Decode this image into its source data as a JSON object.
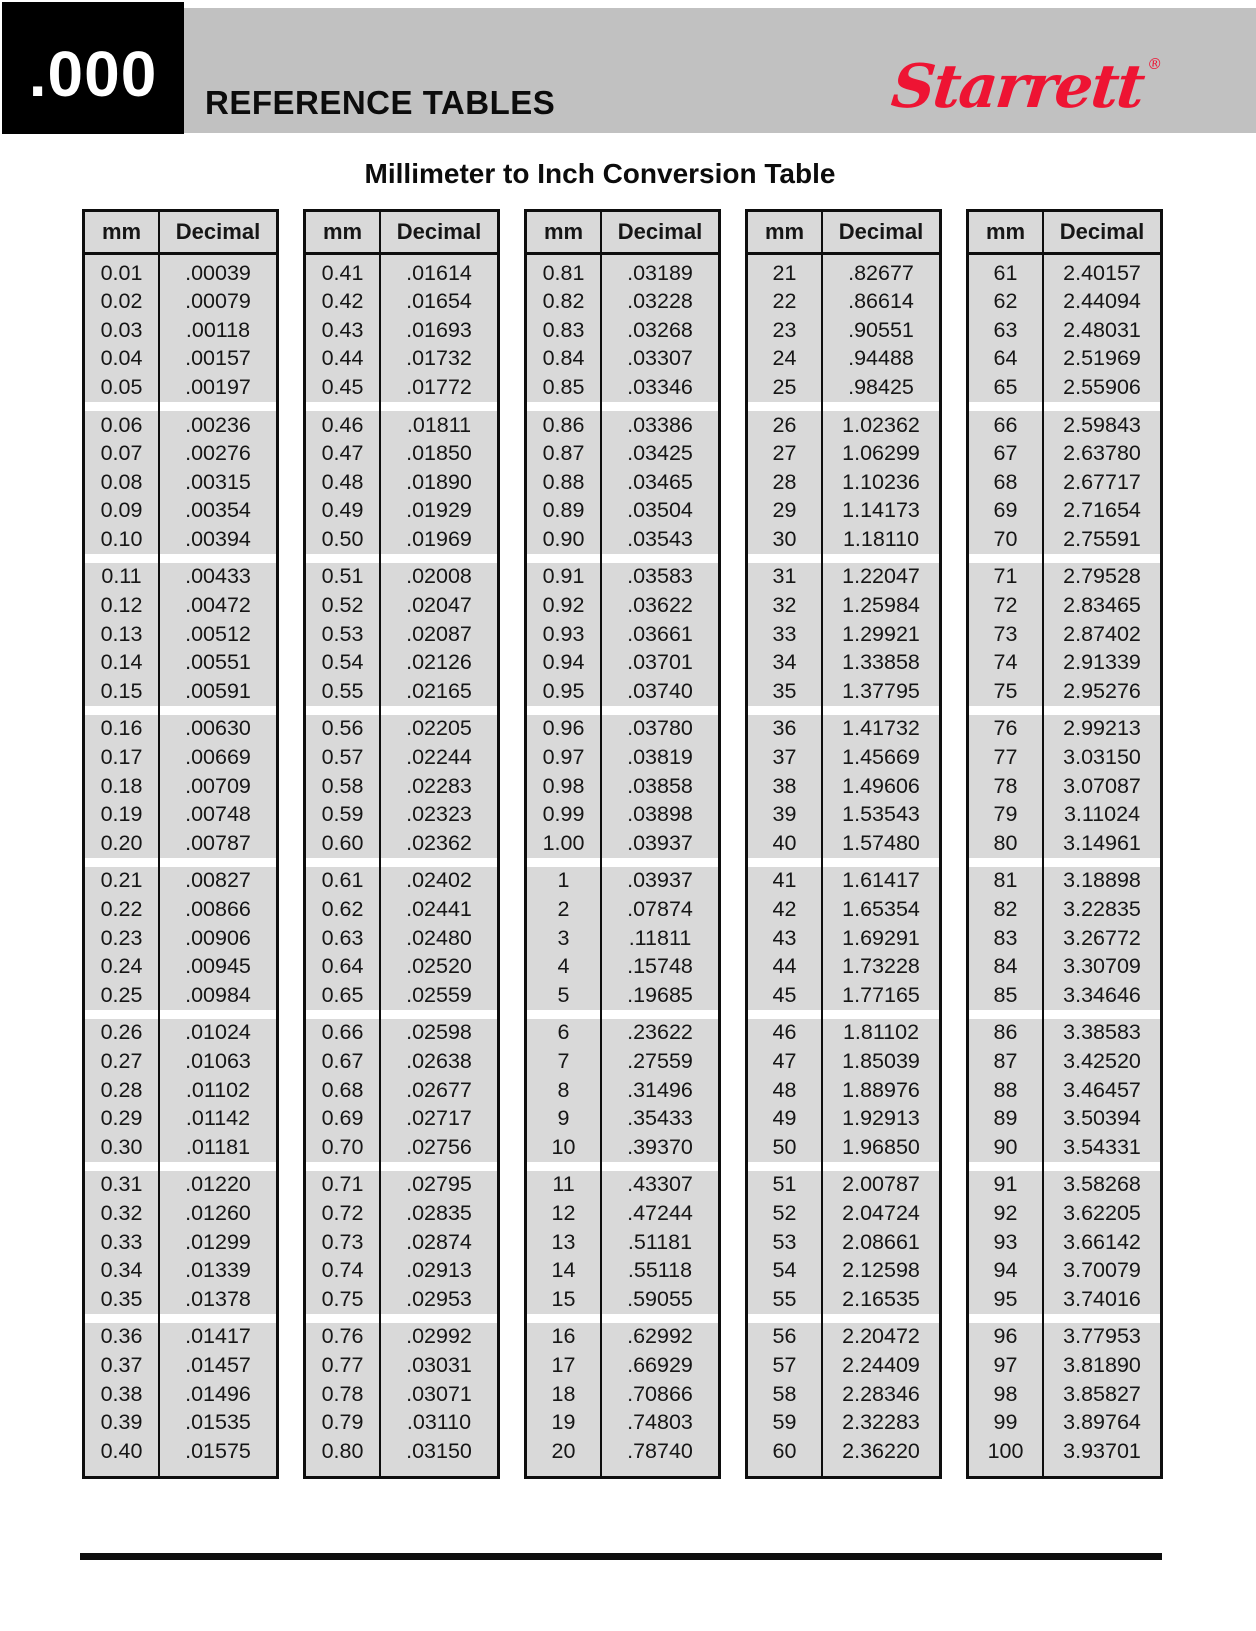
{
  "page": {
    "section_code": ".000",
    "section_title": "REFERENCE TABLES",
    "brand": {
      "name": "Starrett",
      "registered_mark": "®"
    },
    "title": "Millimeter to Inch Conversion Table"
  },
  "colors": {
    "brand_red": "#ee1433",
    "header_bar_gray": "#c1c1c1",
    "table_background_gray": "#d9d9d9",
    "border_black": "#0e0e0e"
  },
  "conversion_table": {
    "column_headers": {
      "mm": "mm",
      "decimal": "Decimal"
    },
    "group_size": 5,
    "columns": [
      {
        "rows": [
          [
            "0.01",
            ".00039"
          ],
          [
            "0.02",
            ".00079"
          ],
          [
            "0.03",
            ".00118"
          ],
          [
            "0.04",
            ".00157"
          ],
          [
            "0.05",
            ".00197"
          ],
          [
            "0.06",
            ".00236"
          ],
          [
            "0.07",
            ".00276"
          ],
          [
            "0.08",
            ".00315"
          ],
          [
            "0.09",
            ".00354"
          ],
          [
            "0.10",
            ".00394"
          ],
          [
            "0.11",
            ".00433"
          ],
          [
            "0.12",
            ".00472"
          ],
          [
            "0.13",
            ".00512"
          ],
          [
            "0.14",
            ".00551"
          ],
          [
            "0.15",
            ".00591"
          ],
          [
            "0.16",
            ".00630"
          ],
          [
            "0.17",
            ".00669"
          ],
          [
            "0.18",
            ".00709"
          ],
          [
            "0.19",
            ".00748"
          ],
          [
            "0.20",
            ".00787"
          ],
          [
            "0.21",
            ".00827"
          ],
          [
            "0.22",
            ".00866"
          ],
          [
            "0.23",
            ".00906"
          ],
          [
            "0.24",
            ".00945"
          ],
          [
            "0.25",
            ".00984"
          ],
          [
            "0.26",
            ".01024"
          ],
          [
            "0.27",
            ".01063"
          ],
          [
            "0.28",
            ".01102"
          ],
          [
            "0.29",
            ".01142"
          ],
          [
            "0.30",
            ".01181"
          ],
          [
            "0.31",
            ".01220"
          ],
          [
            "0.32",
            ".01260"
          ],
          [
            "0.33",
            ".01299"
          ],
          [
            "0.34",
            ".01339"
          ],
          [
            "0.35",
            ".01378"
          ],
          [
            "0.36",
            ".01417"
          ],
          [
            "0.37",
            ".01457"
          ],
          [
            "0.38",
            ".01496"
          ],
          [
            "0.39",
            ".01535"
          ],
          [
            "0.40",
            ".01575"
          ]
        ]
      },
      {
        "rows": [
          [
            "0.41",
            ".01614"
          ],
          [
            "0.42",
            ".01654"
          ],
          [
            "0.43",
            ".01693"
          ],
          [
            "0.44",
            ".01732"
          ],
          [
            "0.45",
            ".01772"
          ],
          [
            "0.46",
            ".01811"
          ],
          [
            "0.47",
            ".01850"
          ],
          [
            "0.48",
            ".01890"
          ],
          [
            "0.49",
            ".01929"
          ],
          [
            "0.50",
            ".01969"
          ],
          [
            "0.51",
            ".02008"
          ],
          [
            "0.52",
            ".02047"
          ],
          [
            "0.53",
            ".02087"
          ],
          [
            "0.54",
            ".02126"
          ],
          [
            "0.55",
            ".02165"
          ],
          [
            "0.56",
            ".02205"
          ],
          [
            "0.57",
            ".02244"
          ],
          [
            "0.58",
            ".02283"
          ],
          [
            "0.59",
            ".02323"
          ],
          [
            "0.60",
            ".02362"
          ],
          [
            "0.61",
            ".02402"
          ],
          [
            "0.62",
            ".02441"
          ],
          [
            "0.63",
            ".02480"
          ],
          [
            "0.64",
            ".02520"
          ],
          [
            "0.65",
            ".02559"
          ],
          [
            "0.66",
            ".02598"
          ],
          [
            "0.67",
            ".02638"
          ],
          [
            "0.68",
            ".02677"
          ],
          [
            "0.69",
            ".02717"
          ],
          [
            "0.70",
            ".02756"
          ],
          [
            "0.71",
            ".02795"
          ],
          [
            "0.72",
            ".02835"
          ],
          [
            "0.73",
            ".02874"
          ],
          [
            "0.74",
            ".02913"
          ],
          [
            "0.75",
            ".02953"
          ],
          [
            "0.76",
            ".02992"
          ],
          [
            "0.77",
            ".03031"
          ],
          [
            "0.78",
            ".03071"
          ],
          [
            "0.79",
            ".03110"
          ],
          [
            "0.80",
            ".03150"
          ]
        ]
      },
      {
        "rows": [
          [
            "0.81",
            ".03189"
          ],
          [
            "0.82",
            ".03228"
          ],
          [
            "0.83",
            ".03268"
          ],
          [
            "0.84",
            ".03307"
          ],
          [
            "0.85",
            ".03346"
          ],
          [
            "0.86",
            ".03386"
          ],
          [
            "0.87",
            ".03425"
          ],
          [
            "0.88",
            ".03465"
          ],
          [
            "0.89",
            ".03504"
          ],
          [
            "0.90",
            ".03543"
          ],
          [
            "0.91",
            ".03583"
          ],
          [
            "0.92",
            ".03622"
          ],
          [
            "0.93",
            ".03661"
          ],
          [
            "0.94",
            ".03701"
          ],
          [
            "0.95",
            ".03740"
          ],
          [
            "0.96",
            ".03780"
          ],
          [
            "0.97",
            ".03819"
          ],
          [
            "0.98",
            ".03858"
          ],
          [
            "0.99",
            ".03898"
          ],
          [
            "1.00",
            ".03937"
          ],
          [
            "1",
            ".03937"
          ],
          [
            "2",
            ".07874"
          ],
          [
            "3",
            ".11811"
          ],
          [
            "4",
            ".15748"
          ],
          [
            "5",
            ".19685"
          ],
          [
            "6",
            ".23622"
          ],
          [
            "7",
            ".27559"
          ],
          [
            "8",
            ".31496"
          ],
          [
            "9",
            ".35433"
          ],
          [
            "10",
            ".39370"
          ],
          [
            "11",
            ".43307"
          ],
          [
            "12",
            ".47244"
          ],
          [
            "13",
            ".51181"
          ],
          [
            "14",
            ".55118"
          ],
          [
            "15",
            ".59055"
          ],
          [
            "16",
            ".62992"
          ],
          [
            "17",
            ".66929"
          ],
          [
            "18",
            ".70866"
          ],
          [
            "19",
            ".74803"
          ],
          [
            "20",
            ".78740"
          ]
        ]
      },
      {
        "rows": [
          [
            "21",
            ".82677"
          ],
          [
            "22",
            ".86614"
          ],
          [
            "23",
            ".90551"
          ],
          [
            "24",
            ".94488"
          ],
          [
            "25",
            ".98425"
          ],
          [
            "26",
            "1.02362"
          ],
          [
            "27",
            "1.06299"
          ],
          [
            "28",
            "1.10236"
          ],
          [
            "29",
            "1.14173"
          ],
          [
            "30",
            "1.18110"
          ],
          [
            "31",
            "1.22047"
          ],
          [
            "32",
            "1.25984"
          ],
          [
            "33",
            "1.29921"
          ],
          [
            "34",
            "1.33858"
          ],
          [
            "35",
            "1.37795"
          ],
          [
            "36",
            "1.41732"
          ],
          [
            "37",
            "1.45669"
          ],
          [
            "38",
            "1.49606"
          ],
          [
            "39",
            "1.53543"
          ],
          [
            "40",
            "1.57480"
          ],
          [
            "41",
            "1.61417"
          ],
          [
            "42",
            "1.65354"
          ],
          [
            "43",
            "1.69291"
          ],
          [
            "44",
            "1.73228"
          ],
          [
            "45",
            "1.77165"
          ],
          [
            "46",
            "1.81102"
          ],
          [
            "47",
            "1.85039"
          ],
          [
            "48",
            "1.88976"
          ],
          [
            "49",
            "1.92913"
          ],
          [
            "50",
            "1.96850"
          ],
          [
            "51",
            "2.00787"
          ],
          [
            "52",
            "2.04724"
          ],
          [
            "53",
            "2.08661"
          ],
          [
            "54",
            "2.12598"
          ],
          [
            "55",
            "2.16535"
          ],
          [
            "56",
            "2.20472"
          ],
          [
            "57",
            "2.24409"
          ],
          [
            "58",
            "2.28346"
          ],
          [
            "59",
            "2.32283"
          ],
          [
            "60",
            "2.36220"
          ]
        ]
      },
      {
        "rows": [
          [
            "61",
            "2.40157"
          ],
          [
            "62",
            "2.44094"
          ],
          [
            "63",
            "2.48031"
          ],
          [
            "64",
            "2.51969"
          ],
          [
            "65",
            "2.55906"
          ],
          [
            "66",
            "2.59843"
          ],
          [
            "67",
            "2.63780"
          ],
          [
            "68",
            "2.67717"
          ],
          [
            "69",
            "2.71654"
          ],
          [
            "70",
            "2.75591"
          ],
          [
            "71",
            "2.79528"
          ],
          [
            "72",
            "2.83465"
          ],
          [
            "73",
            "2.87402"
          ],
          [
            "74",
            "2.91339"
          ],
          [
            "75",
            "2.95276"
          ],
          [
            "76",
            "2.99213"
          ],
          [
            "77",
            "3.03150"
          ],
          [
            "78",
            "3.07087"
          ],
          [
            "79",
            "3.11024"
          ],
          [
            "80",
            "3.14961"
          ],
          [
            "81",
            "3.18898"
          ],
          [
            "82",
            "3.22835"
          ],
          [
            "83",
            "3.26772"
          ],
          [
            "84",
            "3.30709"
          ],
          [
            "85",
            "3.34646"
          ],
          [
            "86",
            "3.38583"
          ],
          [
            "87",
            "3.42520"
          ],
          [
            "88",
            "3.46457"
          ],
          [
            "89",
            "3.50394"
          ],
          [
            "90",
            "3.54331"
          ],
          [
            "91",
            "3.58268"
          ],
          [
            "92",
            "3.62205"
          ],
          [
            "93",
            "3.66142"
          ],
          [
            "94",
            "3.70079"
          ],
          [
            "95",
            "3.74016"
          ],
          [
            "96",
            "3.77953"
          ],
          [
            "97",
            "3.81890"
          ],
          [
            "98",
            "3.85827"
          ],
          [
            "99",
            "3.89764"
          ],
          [
            "100",
            "3.93701"
          ]
        ]
      }
    ]
  }
}
